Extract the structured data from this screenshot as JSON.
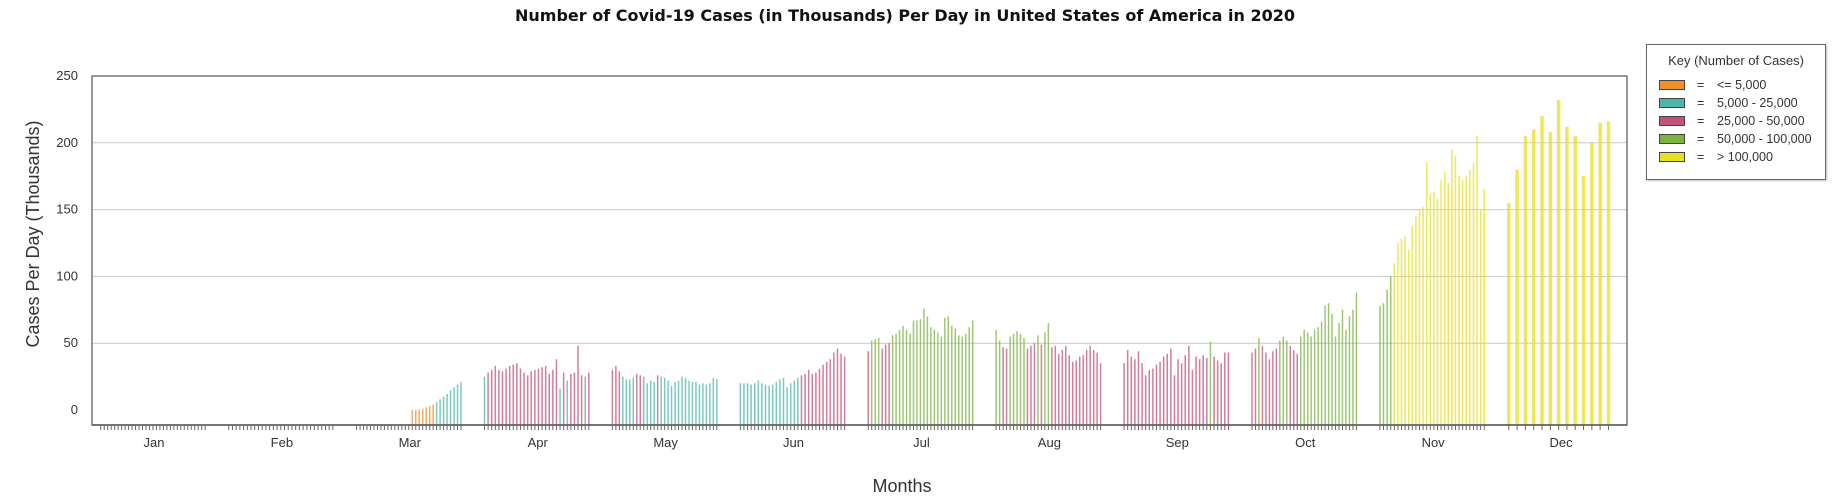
{
  "chart_data": {
    "type": "bar",
    "title": "Number of Covid-19 Cases (in Thousands) Per Day in United States of America in 2020",
    "xlabel": "Months",
    "ylabel": "Cases Per Day (Thousands)",
    "ylim": [
      0,
      250
    ],
    "yticks": [
      0,
      50,
      100,
      150,
      200,
      250
    ],
    "grid": true,
    "legend_position": "top-right",
    "legend": {
      "title": "Key (Number of Cases)",
      "items": [
        {
          "label": "<= 5,000",
          "color": "#F28E2B"
        },
        {
          "label": "5,000 - 25,000",
          "color": "#4DB6AC"
        },
        {
          "label": "25,000 - 50,000",
          "color": "#C2527A"
        },
        {
          "label": "50,000 - 100,000",
          "color": "#7CB342"
        },
        {
          "label": "> 100,000",
          "color": "#E8E020"
        }
      ]
    },
    "series": [
      {
        "month": "Jan",
        "values": [
          0,
          0,
          0,
          0,
          0,
          0,
          0,
          0,
          0,
          0,
          0,
          0,
          0,
          0,
          0,
          0,
          0,
          0,
          0,
          0,
          0,
          0,
          0,
          0,
          0,
          0,
          0,
          0,
          0,
          0,
          0
        ]
      },
      {
        "month": "Feb",
        "values": [
          0,
          0,
          0,
          0,
          0,
          0,
          0,
          0,
          0,
          0,
          0,
          0,
          0,
          0,
          0,
          0,
          0,
          0,
          0,
          0,
          0,
          0,
          0,
          0,
          0,
          0,
          0,
          0,
          0
        ]
      },
      {
        "month": "Mar",
        "values": [
          0,
          0,
          0,
          0,
          0,
          0,
          0,
          0,
          0,
          0,
          0,
          0,
          0,
          0,
          0,
          0,
          0.1,
          0.3,
          0.6,
          1,
          2,
          3,
          4,
          6,
          8,
          10,
          12,
          15,
          17,
          19,
          21
        ]
      },
      {
        "month": "Apr",
        "values": [
          25,
          28,
          30,
          33,
          30,
          29,
          31,
          33,
          34,
          35,
          31,
          28,
          26,
          29,
          30,
          31,
          32,
          33,
          27,
          30,
          38,
          16,
          28,
          22,
          27,
          28,
          48,
          26,
          25,
          28
        ]
      },
      {
        "month": "May",
        "values": [
          30,
          33,
          29,
          25,
          23,
          23,
          24,
          27,
          26,
          25,
          20,
          22,
          21,
          26,
          25,
          24,
          22,
          18,
          21,
          22,
          25,
          24,
          22,
          21,
          21,
          19,
          20,
          19,
          20,
          24,
          23
        ]
      },
      {
        "month": "Jun",
        "values": [
          20,
          20,
          20,
          19,
          20,
          22,
          20,
          19,
          18,
          19,
          21,
          23,
          24,
          17,
          20,
          22,
          24,
          26,
          27,
          30,
          27,
          28,
          31,
          34,
          36,
          38,
          43,
          46,
          42,
          40
        ]
      },
      {
        "month": "Jul",
        "values": [
          44,
          52,
          53,
          54,
          46,
          49,
          50,
          56,
          57,
          60,
          63,
          60,
          57,
          67,
          67,
          68,
          76,
          70,
          62,
          60,
          58,
          55,
          69,
          70,
          63,
          61,
          56,
          55,
          57,
          62,
          67
        ]
      },
      {
        "month": "Aug",
        "values": [
          60,
          52,
          47,
          46,
          55,
          57,
          59,
          57,
          54,
          46,
          48,
          50,
          56,
          49,
          58,
          65,
          47,
          48,
          42,
          45,
          48,
          41,
          36,
          37,
          40,
          41,
          45,
          48,
          45,
          43,
          35
        ]
      },
      {
        "month": "Sep",
        "values": [
          35,
          45,
          40,
          38,
          44,
          35,
          26,
          30,
          31,
          34,
          36,
          40,
          42,
          46,
          26,
          38,
          35,
          41,
          48,
          30,
          40,
          38,
          41,
          39,
          51,
          40,
          37,
          35,
          43,
          43
        ]
      },
      {
        "month": "Oct",
        "values": [
          43,
          46,
          54,
          48,
          43,
          38,
          44,
          46,
          52,
          55,
          52,
          48,
          45,
          42,
          55,
          60,
          58,
          55,
          60,
          62,
          66,
          78,
          80,
          72,
          55,
          65,
          75,
          60,
          70,
          75,
          88
        ]
      },
      {
        "month": "Nov",
        "values": [
          78,
          80,
          90,
          100,
          110,
          125,
          128,
          130,
          120,
          138,
          145,
          150,
          152,
          185,
          162,
          163,
          158,
          172,
          178,
          170,
          195,
          190,
          175,
          172,
          175,
          180,
          185,
          205,
          150,
          165
        ]
      },
      {
        "month": "Dec",
        "values": [
          155,
          180,
          205,
          210,
          220,
          208,
          232,
          212,
          205,
          175,
          200,
          215,
          216
        ]
      }
    ]
  }
}
